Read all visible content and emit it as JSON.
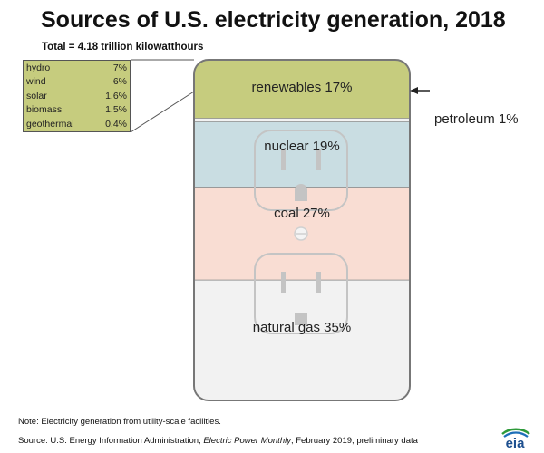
{
  "chart_data": {
    "type": "stacked-area-proportion",
    "title": "Sources of U.S. electricity generation, 2018",
    "subtitle": "Total = 4.18 trillion kilowatthours",
    "segments": [
      {
        "name": "renewables",
        "label": "renewables 17%",
        "value": 17,
        "color": "#c6cc7e"
      },
      {
        "name": "petroleum",
        "label": "petroleum 1%",
        "value": 1,
        "color": "#ffffff"
      },
      {
        "name": "nuclear",
        "label": "nuclear 19%",
        "value": 19,
        "color": "#c9dde2"
      },
      {
        "name": "coal",
        "label": "coal 27%",
        "value": 27,
        "color": "#f9ddd3"
      },
      {
        "name": "natural gas",
        "label": "natural gas 35%",
        "value": 35,
        "color": "#f2f2f2"
      }
    ],
    "renewables_breakdown": [
      {
        "name": "hydro",
        "value": "7%"
      },
      {
        "name": "wind",
        "value": "6%"
      },
      {
        "name": "solar",
        "value": "1.6%"
      },
      {
        "name": "biomass",
        "value": "1.5%"
      },
      {
        "name": "geothermal",
        "value": "0.4%"
      }
    ]
  },
  "footer": {
    "note": "Note: Electricity generation from utility-scale facilities.",
    "source_prefix": "Source: U.S. Energy Information Administration, ",
    "source_italic": "Electric Power Monthly",
    "source_suffix": ", February 2019, preliminary data"
  },
  "logo": {
    "text": "eia"
  }
}
